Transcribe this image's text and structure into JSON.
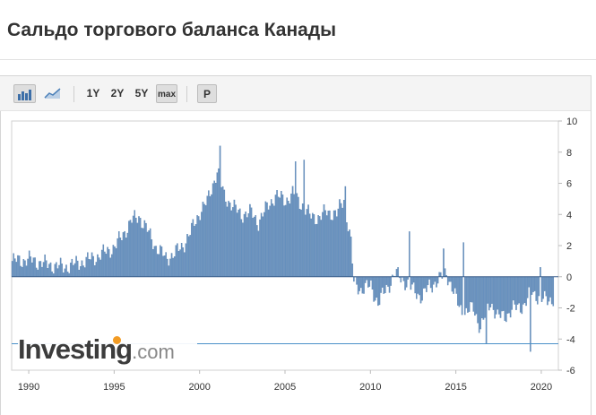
{
  "page": {
    "title": "Сальдо торгового баланса Канады"
  },
  "toolbar": {
    "bar_chart_icon": "bar-chart-icon",
    "line_chart_icon": "line-chart-icon",
    "range_buttons": [
      "1Y",
      "2Y",
      "5Y",
      "max"
    ],
    "selected_range": "max",
    "p_button": "P"
  },
  "watermark": {
    "brand": "Investing",
    "tld": ".com"
  },
  "colors": {
    "bar": "#4f7cac",
    "bar_fill": "#6b93c0",
    "current_line": "#4a90c8",
    "accent_dot": "#f29b24"
  },
  "chart_data": {
    "type": "bar",
    "xlim": [
      "1989-01",
      "2020-12"
    ],
    "ylim": [
      -6,
      10
    ],
    "y_ticks": [
      10,
      8,
      6,
      4,
      2,
      0,
      -2,
      -4,
      -6
    ],
    "x_ticks": [
      "1990",
      "1995",
      "2000",
      "2005",
      "2010",
      "2015",
      "2020"
    ],
    "current_value_line": -4.3,
    "frequency": "monthly",
    "series": [
      {
        "anchors": [
          [
            "1989-01",
            1.0
          ],
          [
            "1990-01",
            1.1
          ],
          [
            "1991-01",
            0.8
          ],
          [
            "1992-01",
            0.6
          ],
          [
            "1993-01",
            0.9
          ],
          [
            "1994-01",
            1.3
          ],
          [
            "1995-01",
            1.9
          ],
          [
            "1995-06",
            2.6
          ],
          [
            "1996-01",
            3.6
          ],
          [
            "1996-06",
            3.9
          ],
          [
            "1997-01",
            2.8
          ],
          [
            "1997-06",
            1.9
          ],
          [
            "1998-01",
            1.2
          ],
          [
            "1998-06",
            1.4
          ],
          [
            "1999-01",
            2.0
          ],
          [
            "1999-06",
            2.8
          ],
          [
            "2000-01",
            4.2
          ],
          [
            "2000-06",
            4.8
          ],
          [
            "2001-01",
            6.8
          ],
          [
            "2001-06",
            5.2
          ],
          [
            "2002-01",
            4.4
          ],
          [
            "2002-06",
            4.0
          ],
          [
            "2003-01",
            4.1
          ],
          [
            "2003-06",
            3.5
          ],
          [
            "2004-01",
            4.6
          ],
          [
            "2004-06",
            5.2
          ],
          [
            "2005-01",
            4.9
          ],
          [
            "2005-06",
            5.3
          ],
          [
            "2006-01",
            4.6
          ],
          [
            "2006-06",
            3.9
          ],
          [
            "2007-01",
            3.8
          ],
          [
            "2007-06",
            4.2
          ],
          [
            "2008-01",
            4.0
          ],
          [
            "2008-06",
            5.0
          ],
          [
            "2008-11",
            2.2
          ],
          [
            "2009-01",
            -0.4
          ],
          [
            "2009-06",
            -0.8
          ],
          [
            "2010-01",
            -0.6
          ],
          [
            "2010-06",
            -1.7
          ],
          [
            "2011-01",
            -0.6
          ],
          [
            "2011-06",
            0.2
          ],
          [
            "2012-01",
            -0.3
          ],
          [
            "2012-06",
            -0.8
          ],
          [
            "2013-01",
            -1.3
          ],
          [
            "2013-06",
            -0.6
          ],
          [
            "2014-01",
            -0.2
          ],
          [
            "2014-06",
            0.3
          ],
          [
            "2015-01",
            -1.5
          ],
          [
            "2015-06",
            -2.4
          ],
          [
            "2016-01",
            -2.0
          ],
          [
            "2016-06",
            -3.3
          ],
          [
            "2017-01",
            -1.6
          ],
          [
            "2017-06",
            -2.6
          ],
          [
            "2018-01",
            -2.4
          ],
          [
            "2018-06",
            -2.0
          ],
          [
            "2019-01",
            -1.8
          ],
          [
            "2019-06",
            -0.9
          ],
          [
            "2020-01",
            -1.5
          ],
          [
            "2020-09",
            -1.4
          ]
        ],
        "spikes": [
          [
            "2001-03",
            8.4
          ],
          [
            "2005-08",
            7.4
          ],
          [
            "2006-02",
            7.5
          ],
          [
            "2008-07",
            5.8
          ],
          [
            "2012-04",
            2.9
          ],
          [
            "2014-04",
            1.8
          ],
          [
            "2015-06",
            2.2
          ],
          [
            "2016-10",
            -4.3
          ],
          [
            "2019-05",
            -4.8
          ],
          [
            "2019-12",
            0.6
          ]
        ]
      }
    ]
  }
}
